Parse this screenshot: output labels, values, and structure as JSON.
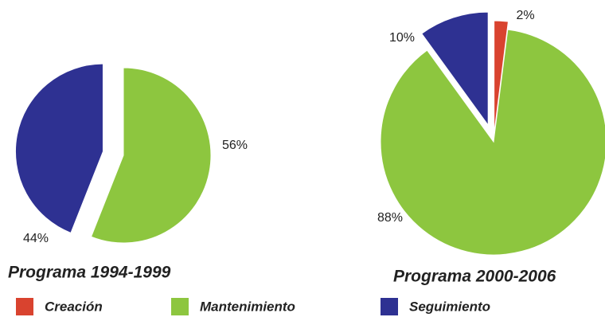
{
  "chart_data": [
    {
      "type": "pie",
      "title": "Programa 1994-1999",
      "categories": [
        "Mantenimiento",
        "Seguimiento"
      ],
      "values": [
        56,
        44
      ],
      "value_labels": [
        "56%",
        "44%"
      ],
      "colors": [
        "#8dc63f",
        "#2e3192"
      ]
    },
    {
      "type": "pie",
      "title": "Programa 2000-2006",
      "categories": [
        "Creación",
        "Mantenimiento",
        "Seguimiento"
      ],
      "values": [
        2,
        88,
        10
      ],
      "value_labels": [
        "2%",
        "88%",
        "10%"
      ],
      "colors": [
        "#d9432f",
        "#8dc63f",
        "#2e3192"
      ]
    }
  ]
}
